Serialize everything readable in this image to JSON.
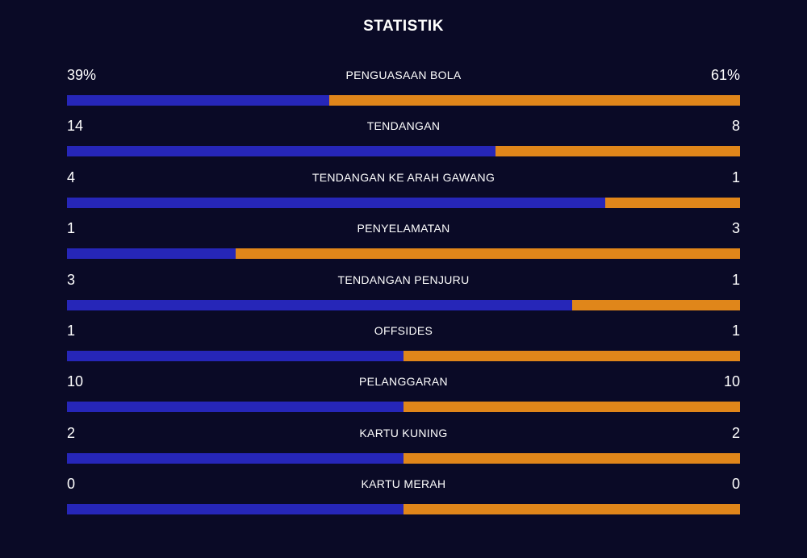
{
  "header": {
    "title": "STATISTIK"
  },
  "colors": {
    "home": "#2626b8",
    "away": "#e0861a",
    "background": "#0a0a26"
  },
  "stats": [
    {
      "label": "PENGUASAAN BOLA",
      "home": "39%",
      "away": "61%",
      "home_share": 0.39
    },
    {
      "label": "TENDANGAN",
      "home": "14",
      "away": "8",
      "home_share": 0.6364
    },
    {
      "label": "TENDANGAN KE ARAH GAWANG",
      "home": "4",
      "away": "1",
      "home_share": 0.8
    },
    {
      "label": "PENYELAMATAN",
      "home": "1",
      "away": "3",
      "home_share": 0.25
    },
    {
      "label": "TENDANGAN PENJURU",
      "home": "3",
      "away": "1",
      "home_share": 0.75
    },
    {
      "label": "OFFSIDES",
      "home": "1",
      "away": "1",
      "home_share": 0.5
    },
    {
      "label": "PELANGGARAN",
      "home": "10",
      "away": "10",
      "home_share": 0.5
    },
    {
      "label": "KARTU KUNING",
      "home": "2",
      "away": "2",
      "home_share": 0.5
    },
    {
      "label": "KARTU MERAH",
      "home": "0",
      "away": "0",
      "home_share": 0.5
    }
  ]
}
